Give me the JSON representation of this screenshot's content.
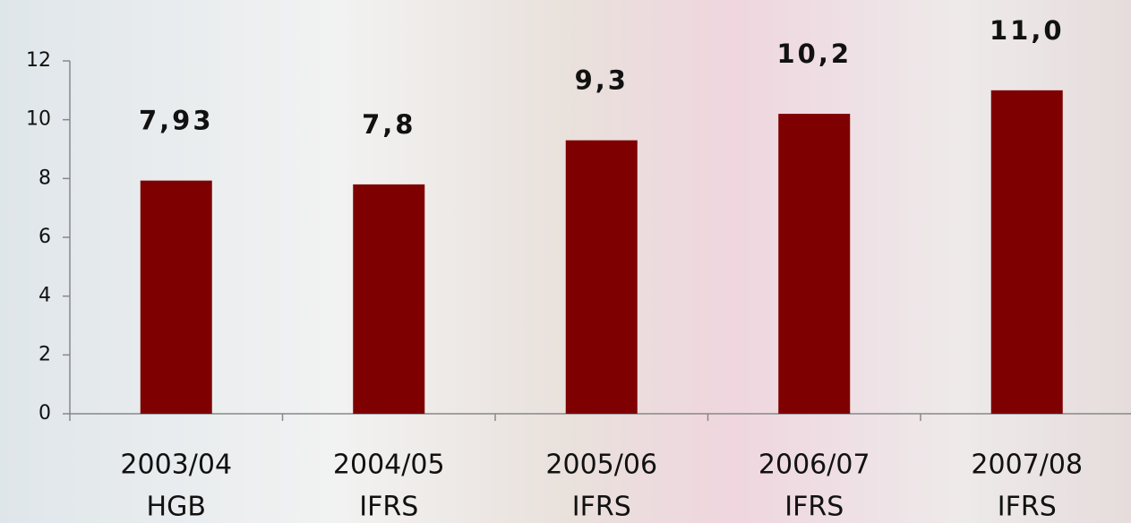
{
  "chart_data": {
    "type": "bar",
    "categories": [
      [
        "2003/04",
        "HGB"
      ],
      [
        "2004/05",
        "IFRS"
      ],
      [
        "2005/06",
        "IFRS"
      ],
      [
        "2006/07",
        "IFRS"
      ],
      [
        "2007/08",
        "IFRS"
      ]
    ],
    "values": [
      7.93,
      7.8,
      9.3,
      10.2,
      11.0
    ],
    "value_labels": [
      "7,93",
      "7,8",
      "9,3",
      "10,2",
      "11,0"
    ],
    "color": "#7f0000",
    "ylim": [
      0,
      12
    ],
    "yticks": [
      0,
      2,
      4,
      6,
      8,
      10,
      12
    ],
    "grid": false
  }
}
